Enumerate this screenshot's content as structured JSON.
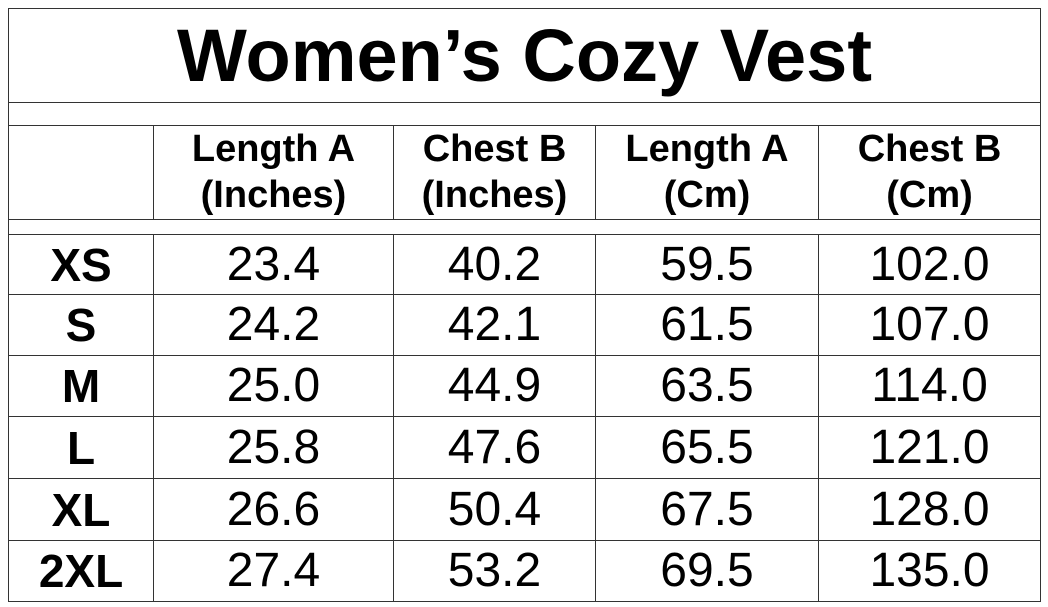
{
  "title": "Women’s Cozy Vest",
  "table": {
    "header": [
      [
        "Length A",
        "(Inches)"
      ],
      [
        "Chest B",
        "(Inches)"
      ],
      [
        "Length A",
        "(Cm)"
      ],
      [
        "Chest B",
        "(Cm)"
      ]
    ],
    "rows": [
      [
        "XS",
        "23.4",
        "40.2",
        "59.5",
        "102.0"
      ],
      [
        "S",
        "24.2",
        "42.1",
        "61.5",
        "107.0"
      ],
      [
        "M",
        "25.0",
        "44.9",
        "63.5",
        "114.0"
      ],
      [
        "L",
        "25.8",
        "47.6",
        "65.5",
        "121.0"
      ],
      [
        "XL",
        "26.6",
        "50.4",
        "67.5",
        "128.0"
      ],
      [
        "2XL",
        "27.4",
        "53.2",
        "69.5",
        "135.0"
      ]
    ]
  }
}
